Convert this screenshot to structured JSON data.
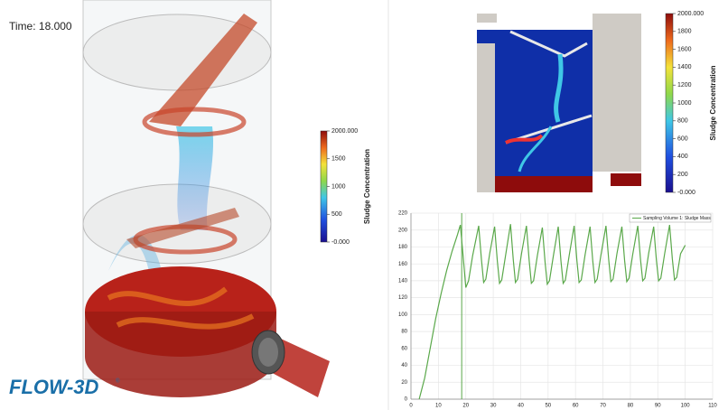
{
  "time_label": "Time: 18.000",
  "logo": "FLOW-3D",
  "logo_mark": "®",
  "colorbars": [
    {
      "title": "Sludge Concentration",
      "lim": [
        0,
        2000
      ],
      "ticks": [
        {
          "value": 2000,
          "label": "2000.000"
        },
        1500,
        1000,
        500,
        {
          "value": 0,
          "label": "-0.000"
        }
      ]
    },
    {
      "title": "Sludge Concentration",
      "lim": [
        0,
        2000
      ],
      "ticks": [
        {
          "value": 2000,
          "label": "2000.000"
        },
        1800,
        1600,
        1400,
        1200,
        1000,
        800,
        600,
        400,
        200,
        {
          "value": 0,
          "label": "-0.000"
        }
      ]
    }
  ],
  "chart_data": {
    "type": "line",
    "x": [
      3,
      5,
      7,
      9,
      11,
      13,
      15,
      17,
      18,
      19,
      20,
      21,
      22.5,
      24.7,
      25.7,
      26.5,
      27.3,
      28.7,
      30.5,
      31.5,
      32.3,
      33.1,
      34.5,
      36.3,
      37.3,
      38.1,
      38.9,
      40.3,
      42.1,
      43.1,
      43.9,
      44.7,
      46.1,
      47.9,
      48.9,
      49.7,
      50.5,
      51.9,
      53.7,
      54.7,
      55.5,
      56.3,
      57.7,
      59.5,
      60.5,
      61.3,
      62.1,
      63.5,
      65.3,
      66.3,
      67.1,
      67.9,
      69.3,
      71.1,
      72.1,
      72.9,
      73.7,
      75.1,
      76.9,
      77.9,
      78.7,
      79.5,
      80.9,
      82.7,
      83.7,
      84.5,
      85.3,
      86.7,
      88.5,
      89.5,
      90.3,
      91.1,
      92.5,
      94.3,
      95.3,
      96.1,
      96.9,
      98.3,
      100
    ],
    "series": [
      {
        "name": "Sampling Volume 1: Sludge Mass",
        "color": "#5aa84a",
        "values": [
          0,
          25,
          60,
          95,
          125,
          152,
          175,
          195,
          206,
          170,
          132,
          140,
          170,
          205,
          165,
          138,
          142,
          172,
          204,
          163,
          137,
          141,
          170,
          207,
          165,
          138,
          142,
          172,
          205,
          164,
          137,
          140,
          170,
          203,
          162,
          136,
          140,
          169,
          204,
          163,
          137,
          141,
          170,
          205,
          164,
          138,
          141,
          171,
          204,
          163,
          138,
          142,
          171,
          205,
          165,
          139,
          142,
          172,
          204,
          164,
          139,
          143,
          172,
          205,
          165,
          140,
          143,
          173,
          204,
          164,
          140,
          143,
          172,
          206,
          166,
          141,
          144,
          172,
          182
        ]
      }
    ],
    "vline_x": 18.5,
    "xlim": [
      0,
      110
    ],
    "xticks": [
      0,
      10,
      20,
      30,
      40,
      50,
      60,
      70,
      80,
      90,
      100,
      110
    ],
    "ylim": [
      0,
      220
    ],
    "yticks": [
      0,
      20,
      40,
      60,
      80,
      100,
      120,
      140,
      160,
      180,
      200,
      220
    ],
    "grid": true,
    "legend": "upper right"
  }
}
